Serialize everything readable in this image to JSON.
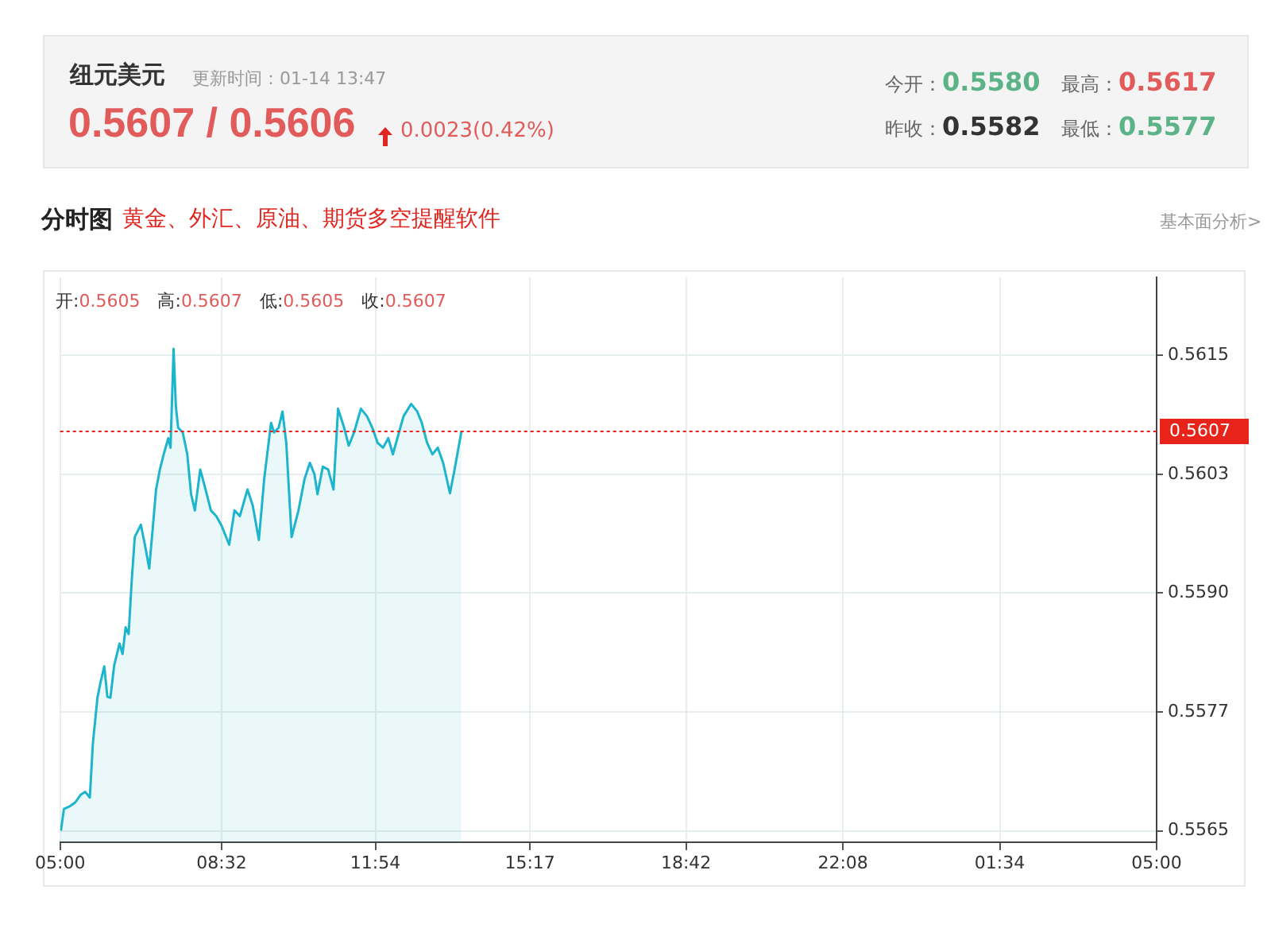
{
  "chart_data": {
    "type": "area",
    "title": "纽元美元",
    "subtitle": "分时图",
    "annotations": [
      "更新时间：01-14 13:47",
      "0.5607 / 0.5606",
      "0.0023(0.42%)",
      "今开：0.5580",
      "最高：0.5617",
      "昨收：0.5582",
      "最低：0.5577",
      "黄金、外汇、原油、期货多空提醒软件",
      "基本面分析>",
      "开:0.5605 高:0.5607 低:0.5605 收:0.5607"
    ],
    "xlim": [
      "--01-14T05:00",
      "--01-15T05:00"
    ],
    "xticks": [
      {
        "value": "--01-14T05:00",
        "label": "05:00"
      },
      {
        "value": "--01-14T08:32",
        "label": "08:32"
      },
      {
        "value": "--01-14T11:54",
        "label": "11:54"
      },
      {
        "value": "--01-14T15:17",
        "label": "15:17"
      },
      {
        "value": "--01-14T18:42",
        "label": "18:42"
      },
      {
        "value": "--01-14T22:08",
        "label": "22:08"
      },
      {
        "value": "--01-15T01:34",
        "label": "01:34"
      },
      {
        "value": "--01-15T05:00",
        "label": "05:00"
      }
    ],
    "ylim": [
      0.55638,
      0.56232
    ],
    "yticks": [
      0.5565,
      {
        "value": 0.55775,
        "label": "0.5577"
      },
      {
        "value": 0.559,
        "label": "0.5590"
      },
      {
        "value": 0.56025,
        "label": "0.5603"
      },
      0.5615
    ],
    "grid": true,
    "legend": false,
    "marker": "none",
    "ref_lines": [
      {
        "axis": "y",
        "value": 0.5607,
        "label": "0.5607",
        "color": "#e8231a",
        "line_style": "dotted"
      }
    ],
    "series": [
      {
        "color": "#1cb5cc",
        "x": [
          "--01-14T05:01",
          "--01-14T05:05",
          "--01-14T05:13",
          "--01-14T05:20",
          "--01-14T05:27",
          "--01-14T05:33",
          "--01-14T05:39",
          "--01-14T05:43",
          "--01-14T05:49",
          "--01-14T05:53",
          "--01-14T05:58",
          "--01-14T06:02",
          "--01-14T06:06",
          "--01-14T06:11",
          "--01-14T06:18",
          "--01-14T06:22",
          "--01-14T06:26",
          "--01-14T06:30",
          "--01-14T06:34",
          "--01-14T06:38",
          "--01-14T06:46",
          "--01-14T06:52",
          "--01-14T06:57",
          "--01-14T07:06",
          "--01-14T07:11",
          "--01-14T07:16",
          "--01-14T07:22",
          "--01-14T07:25",
          "--01-14T07:29",
          "--01-14T07:32",
          "--01-14T07:35",
          "--01-14T07:41",
          "--01-14T07:47",
          "--01-14T07:52",
          "--01-14T07:57",
          "--01-14T08:04",
          "--01-14T08:11",
          "--01-14T08:18",
          "--01-14T08:25",
          "--01-14T08:32",
          "--01-14T08:42",
          "--01-14T08:49",
          "--01-14T08:56",
          "--01-14T09:06",
          "--01-14T09:13",
          "--01-14T09:21",
          "--01-14T09:28",
          "--01-14T09:37",
          "--01-14T09:41",
          "--01-14T09:47",
          "--01-14T09:52",
          "--01-14T09:57",
          "--01-14T10:04",
          "--01-14T10:13",
          "--01-14T10:21",
          "--01-14T10:28",
          "--01-14T10:34",
          "--01-14T10:38",
          "--01-14T10:45",
          "--01-14T10:52",
          "--01-14T10:59",
          "--01-14T11:05",
          "--01-14T11:13",
          "--01-14T11:19",
          "--01-14T11:26",
          "--01-14T11:35",
          "--01-14T11:43",
          "--01-14T11:50",
          "--01-14T11:57",
          "--01-14T12:04",
          "--01-14T12:11",
          "--01-14T12:17",
          "--01-14T12:25",
          "--01-14T12:31",
          "--01-14T12:41",
          "--01-14T12:49",
          "--01-14T12:55",
          "--01-14T13:02",
          "--01-14T13:09",
          "--01-14T13:16",
          "--01-14T13:23",
          "--01-14T13:32",
          "--01-14T13:38",
          "--01-14T13:47"
        ],
        "values": [
          0.5565,
          0.55673,
          0.55676,
          0.5568,
          0.55688,
          0.55691,
          0.55685,
          0.55742,
          0.5579,
          0.55806,
          0.55823,
          0.55791,
          0.5579,
          0.55824,
          0.55847,
          0.55836,
          0.55864,
          0.55857,
          0.55913,
          0.55959,
          0.55972,
          0.55948,
          0.55926,
          0.56009,
          0.5603,
          0.56046,
          0.56063,
          0.56053,
          0.56157,
          0.56096,
          0.56074,
          0.56069,
          0.56046,
          0.56004,
          0.55987,
          0.5603,
          0.56009,
          0.55987,
          0.55981,
          0.55971,
          0.55951,
          0.55987,
          0.55981,
          0.56009,
          0.55992,
          0.55956,
          0.5602,
          0.56079,
          0.56069,
          0.56074,
          0.56091,
          0.56058,
          0.55959,
          0.55987,
          0.5602,
          0.56037,
          0.56025,
          0.56004,
          0.56033,
          0.5603,
          0.56009,
          0.56094,
          0.56074,
          0.56055,
          0.56069,
          0.56094,
          0.56086,
          0.56074,
          0.56058,
          0.56053,
          0.56063,
          0.56046,
          0.56069,
          0.56086,
          0.56099,
          0.56091,
          0.56079,
          0.56058,
          0.56046,
          0.56053,
          0.56037,
          0.56005,
          0.5603,
          0.5607
        ]
      }
    ]
  }
}
